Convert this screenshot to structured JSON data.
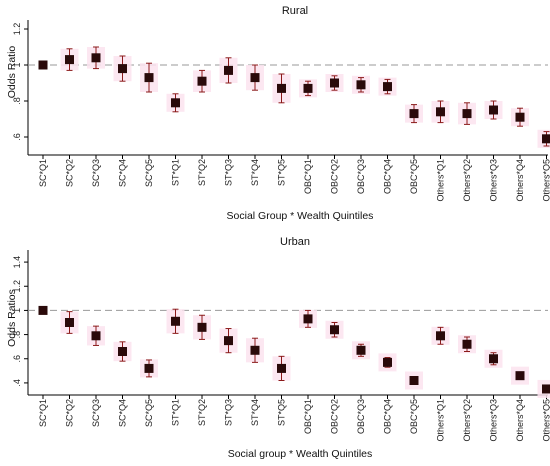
{
  "chart_data": [
    {
      "type": "scatter",
      "title": "Rural",
      "xlabel": "Social Group * Wealth Quintiles",
      "ylabel": "Odds Ratio",
      "ylim": [
        0.5,
        1.25
      ],
      "yticks": [
        ".6",
        ".8",
        "1",
        "1.2"
      ],
      "reference_line": 1,
      "categories": [
        "SC*Q1",
        "SC*Q2",
        "SC*Q3",
        "SC*Q4",
        "SC*Q5",
        "ST*Q1",
        "ST*Q2",
        "ST*Q3",
        "ST*Q4",
        "ST*Q5",
        "OBC*Q1",
        "OBC*Q2",
        "OBC*Q3",
        "OBC*Q4",
        "OBC*Q5",
        "Others*Q1",
        "Others*Q2",
        "Others*Q3",
        "Others*Q4",
        "Others*Q5"
      ],
      "values": [
        1.0,
        1.03,
        1.04,
        0.98,
        0.93,
        0.79,
        0.91,
        0.97,
        0.93,
        0.87,
        0.87,
        0.9,
        0.89,
        0.88,
        0.73,
        0.74,
        0.73,
        0.75,
        0.71,
        0.59
      ],
      "ci_low": [
        1.0,
        0.97,
        0.98,
        0.91,
        0.85,
        0.74,
        0.85,
        0.9,
        0.86,
        0.79,
        0.83,
        0.86,
        0.85,
        0.84,
        0.68,
        0.68,
        0.67,
        0.7,
        0.66,
        0.55
      ],
      "ci_high": [
        1.0,
        1.09,
        1.1,
        1.05,
        1.01,
        0.84,
        0.97,
        1.04,
        1.0,
        0.95,
        0.91,
        0.94,
        0.93,
        0.92,
        0.78,
        0.8,
        0.79,
        0.8,
        0.76,
        0.63
      ]
    },
    {
      "type": "scatter",
      "title": "Urban",
      "xlabel": "Social group * Wealth Quintiles",
      "ylabel": "Odds Ratios",
      "ylim": [
        0.3,
        1.5
      ],
      "yticks": [
        ".4",
        ".6",
        ".8",
        "1",
        "1.2",
        "1.4"
      ],
      "reference_line": 1,
      "categories": [
        "SC*Q1",
        "SC*Q2",
        "SC*Q3",
        "SC*Q4",
        "SC*Q5",
        "ST*Q1",
        "ST*Q2",
        "ST*Q3",
        "ST*Q4",
        "ST*Q5",
        "OBC*Q1",
        "OBC*Q2",
        "OBC*Q3",
        "OBC*Q4",
        "OBC*Q5",
        "Others*Q1",
        "Others*Q2",
        "Others*Q3",
        "Others*Q4",
        "Others*Q5"
      ],
      "values": [
        1.0,
        0.9,
        0.79,
        0.66,
        0.52,
        0.91,
        0.86,
        0.75,
        0.67,
        0.52,
        0.93,
        0.84,
        0.67,
        0.57,
        0.42,
        0.79,
        0.72,
        0.6,
        0.46,
        0.35
      ],
      "ci_low": [
        1.0,
        0.81,
        0.71,
        0.58,
        0.45,
        0.81,
        0.76,
        0.65,
        0.57,
        0.42,
        0.86,
        0.78,
        0.62,
        0.53,
        0.39,
        0.72,
        0.66,
        0.55,
        0.43,
        0.32
      ],
      "ci_high": [
        1.0,
        0.99,
        0.87,
        0.74,
        0.59,
        1.01,
        0.96,
        0.85,
        0.77,
        0.62,
        1.0,
        0.9,
        0.72,
        0.61,
        0.45,
        0.86,
        0.78,
        0.65,
        0.49,
        0.38
      ]
    }
  ]
}
